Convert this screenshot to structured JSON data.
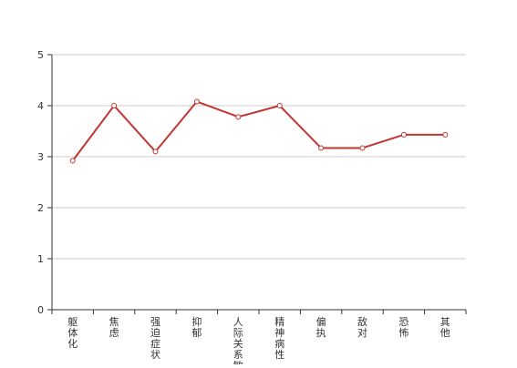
{
  "chart_data": {
    "type": "line",
    "categories": [
      "躯体化",
      "焦虑",
      "强迫症状",
      "抑郁",
      "人际关系敏感",
      "精神病性",
      "偏执",
      "敌对",
      "恐怖",
      "其他"
    ],
    "series": [
      {
        "values": [
          2.92,
          4.0,
          3.1,
          4.08,
          3.78,
          4.0,
          3.17,
          3.17,
          3.43,
          3.43
        ]
      }
    ],
    "yticks": [
      "0",
      "1",
      "2",
      "3",
      "4",
      "5"
    ],
    "ylim": [
      0,
      5
    ],
    "grid": true,
    "line_color": "#c23531",
    "grid_color": "#cccccc",
    "axis_color": "#333333",
    "marker": "hollow-circle"
  }
}
